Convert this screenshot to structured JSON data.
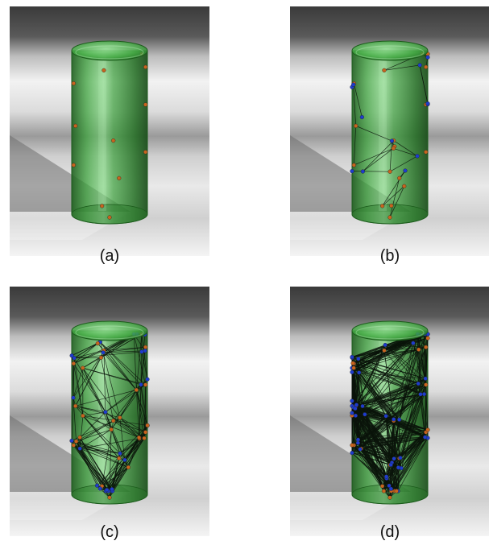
{
  "figure": {
    "panels": [
      {
        "id": "a",
        "caption": "(a)",
        "stage": 0
      },
      {
        "id": "b",
        "caption": "(b)",
        "stage": 1
      },
      {
        "id": "c",
        "caption": "(c)",
        "stage": 2
      },
      {
        "id": "d",
        "caption": "(d)",
        "stage": 3
      }
    ]
  },
  "colors": {
    "cylinder_fill": "#2e8b2e",
    "cylinder_edge": "#1c5c1c",
    "edge_line": "#0a140a",
    "node_orange": "#c8641e",
    "node_blue": "#1e3ccd",
    "background_dark": "#3c3c3c",
    "background_light": "#e6e6e6"
  }
}
